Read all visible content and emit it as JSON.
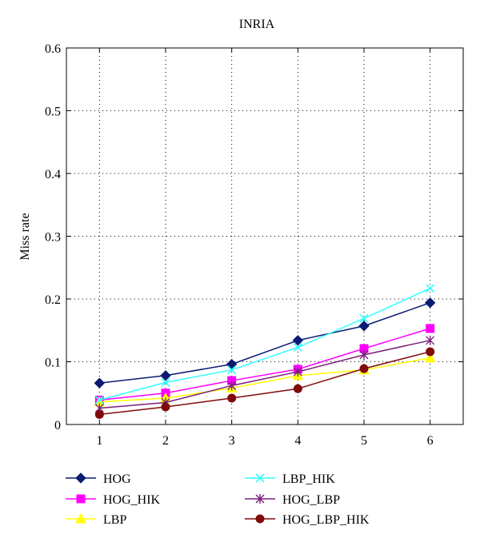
{
  "chart_data": {
    "type": "line",
    "title": "INRIA",
    "xlabel": "",
    "ylabel": "Miss rate",
    "x": [
      1,
      2,
      3,
      4,
      5,
      6
    ],
    "xlim": [
      0.5,
      6.5
    ],
    "ylim": [
      0,
      0.6
    ],
    "xticks": [
      "1",
      "2",
      "3",
      "4",
      "5",
      "6"
    ],
    "yticks": [
      "0",
      "0.1",
      "0.2",
      "0.3",
      "0.4",
      "0.5",
      "0.6"
    ],
    "grid": true,
    "legend_position": "bottom",
    "series": [
      {
        "name": "HOG",
        "color": "#0b1a72",
        "marker": "diamond",
        "values": [
          0.066,
          0.078,
          0.096,
          0.134,
          0.157,
          0.194
        ]
      },
      {
        "name": "HOG_HIK",
        "color": "#ff00ff",
        "marker": "square",
        "values": [
          0.039,
          0.05,
          0.07,
          0.088,
          0.121,
          0.153
        ]
      },
      {
        "name": "LBP",
        "color": "#ffff00",
        "marker": "triangle",
        "values": [
          0.036,
          0.042,
          0.058,
          0.078,
          0.087,
          0.106
        ]
      },
      {
        "name": "LBP_HIK",
        "color": "#33ffff",
        "marker": "x",
        "values": [
          0.039,
          0.067,
          0.087,
          0.123,
          0.169,
          0.217
        ]
      },
      {
        "name": "HOG_LBP",
        "color": "#7a1f7a",
        "marker": "star",
        "values": [
          0.026,
          0.035,
          0.062,
          0.084,
          0.111,
          0.134
        ]
      },
      {
        "name": "HOG_LBP_HIK",
        "color": "#7f0a0a",
        "marker": "circle",
        "values": [
          0.016,
          0.028,
          0.042,
          0.057,
          0.089,
          0.116
        ]
      }
    ]
  }
}
